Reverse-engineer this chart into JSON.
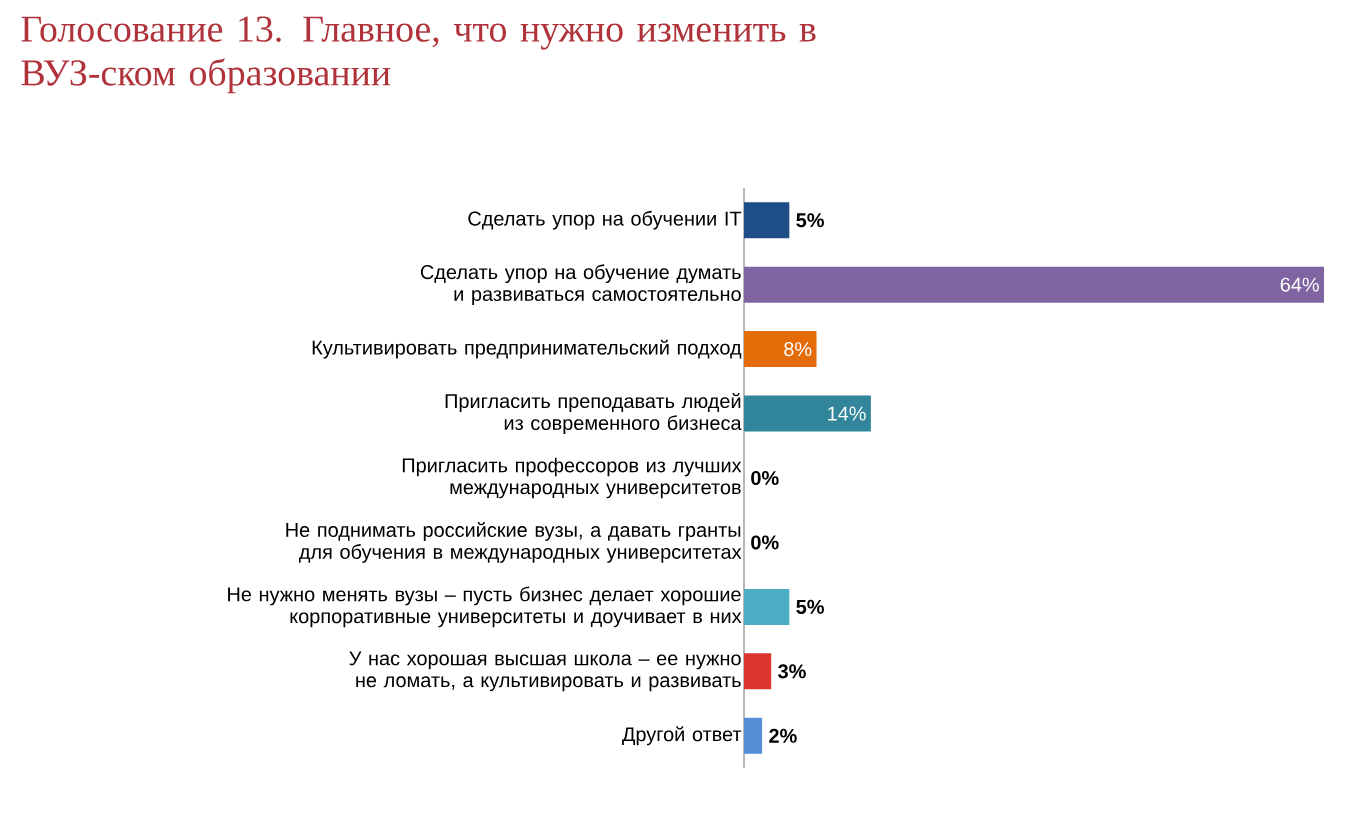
{
  "chart_data": {
    "type": "bar",
    "orientation": "horizontal",
    "title": "Голосование 13. Главное, что нужно изменить в ВУЗ-ском образовании",
    "categories": [
      "Сделать упор на обучении IT",
      "Сделать упор на обучение думать и развиваться самостоятельно",
      "Культивировать предпринимательский подход",
      "Пригласить преподавать людей из современного бизнеса",
      "Пригласить профессоров из лучших международных университетов",
      "Не поднимать российские вузы, а давать гранты для обучения в международных университетах",
      "Не нужно менять вузы – пусть бизнес делает хорошие корпоративные университеты и доучивает в них",
      "У нас хорошая высшая школа – ее нужно не ломать, а культивировать и развивать",
      "Другой ответ"
    ],
    "values": [
      5,
      64,
      8,
      14,
      0,
      0,
      5,
      3,
      2
    ],
    "value_labels": [
      "5%",
      "64%",
      "8%",
      "14%",
      "0%",
      "0%",
      "5%",
      "3%",
      "2%"
    ],
    "colors": [
      "#1f4e86",
      "#8064a2",
      "#e36c09",
      "#31869b",
      null,
      null,
      "#4bacc6",
      "#d9342e",
      "#558ed5"
    ]
  }
}
